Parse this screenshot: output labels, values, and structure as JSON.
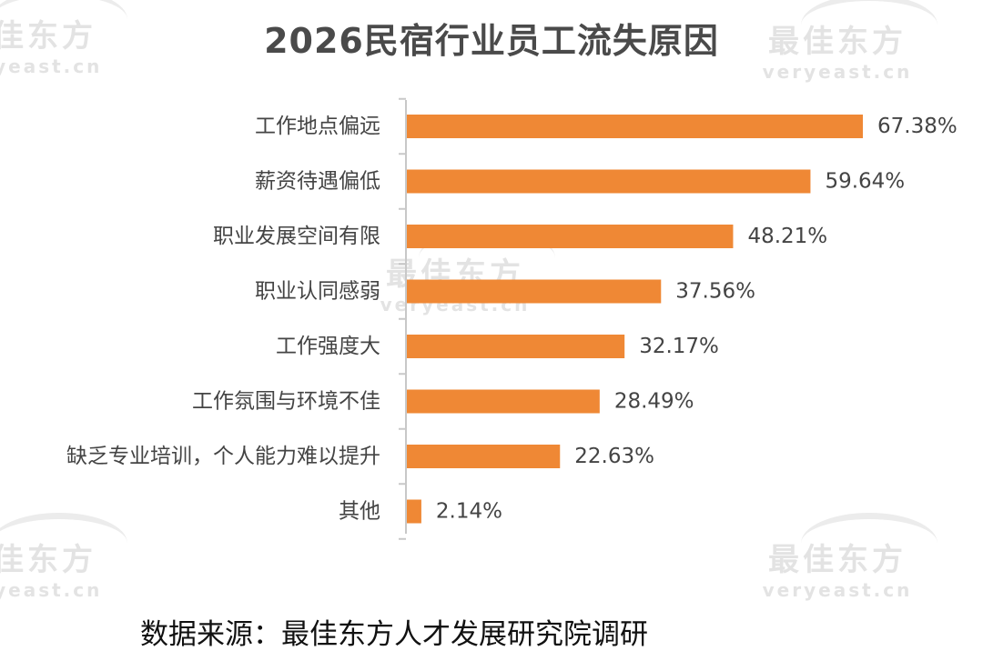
{
  "watermark": {
    "cn": "最佳东方",
    "en": "veryeast.cn"
  },
  "source": "数据来源：最佳东方人才发展研究院调研",
  "chart_data": {
    "type": "bar",
    "orientation": "horizontal",
    "title": "2026民宿行业员工流失原因",
    "xlabel": "",
    "ylabel": "",
    "categories": [
      "工作地点偏远",
      "薪资待遇偏低",
      "职业发展空间有限",
      "职业认同感弱",
      "工作强度大",
      "工作氛围与环境不佳",
      "缺乏专业培训，个人能力难以提升",
      "其他"
    ],
    "values": [
      67.38,
      59.64,
      48.21,
      37.56,
      32.17,
      28.49,
      22.63,
      2.14
    ],
    "labels": [
      "67.38%",
      "59.64%",
      "48.21%",
      "37.56%",
      "32.17%",
      "28.49%",
      "22.63%",
      "2.14%"
    ],
    "xlim": [
      0,
      67.38
    ],
    "grid": false,
    "legend": "none",
    "colors": {
      "bar": "#ef8835",
      "axis": "#c8c8c8",
      "text": "#444444",
      "title": "#4a4a4a"
    }
  }
}
